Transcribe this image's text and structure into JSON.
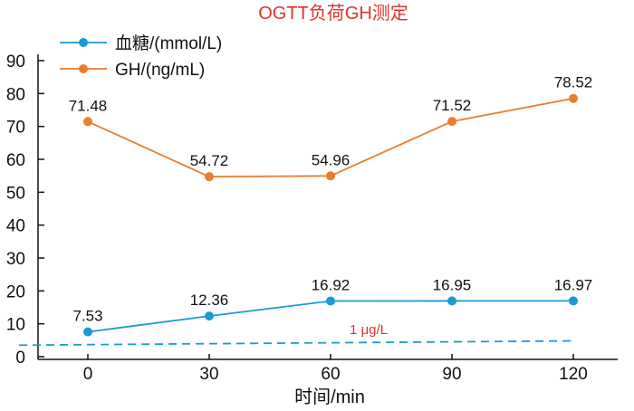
{
  "chart_data": {
    "type": "line",
    "title": "OGTT负荷GH测定",
    "xlabel": "时间/min",
    "ylabel": "",
    "x": [
      0,
      30,
      60,
      90,
      120
    ],
    "xticks": [
      "0",
      "30",
      "60",
      "90",
      "120"
    ],
    "ylim": [
      0,
      90
    ],
    "yticks": [
      "0",
      "10",
      "20",
      "30",
      "40",
      "50",
      "60",
      "70",
      "80",
      "90"
    ],
    "grid": false,
    "legend_position": "top-left",
    "series": [
      {
        "name": "血糖/(mmol/L)",
        "color": "#1a9ad6",
        "values": [
          7.53,
          12.36,
          16.92,
          16.95,
          16.97
        ],
        "labels": [
          "7.53",
          "12.36",
          "16.92",
          "16.95",
          "16.97"
        ]
      },
      {
        "name": "GH/(ng/mL)",
        "color": "#ec7d2c",
        "values": [
          71.48,
          54.72,
          54.96,
          71.52,
          78.52
        ],
        "labels": [
          "71.48",
          "54.72",
          "54.96",
          "71.52",
          "78.52"
        ]
      }
    ],
    "reference_line": {
      "label": "1 μg/L",
      "color": "#1a9ad6",
      "label_color": "#e0322b",
      "x": [
        -17,
        120
      ],
      "y": [
        3.5,
        4.8
      ],
      "style": "dashed"
    }
  }
}
